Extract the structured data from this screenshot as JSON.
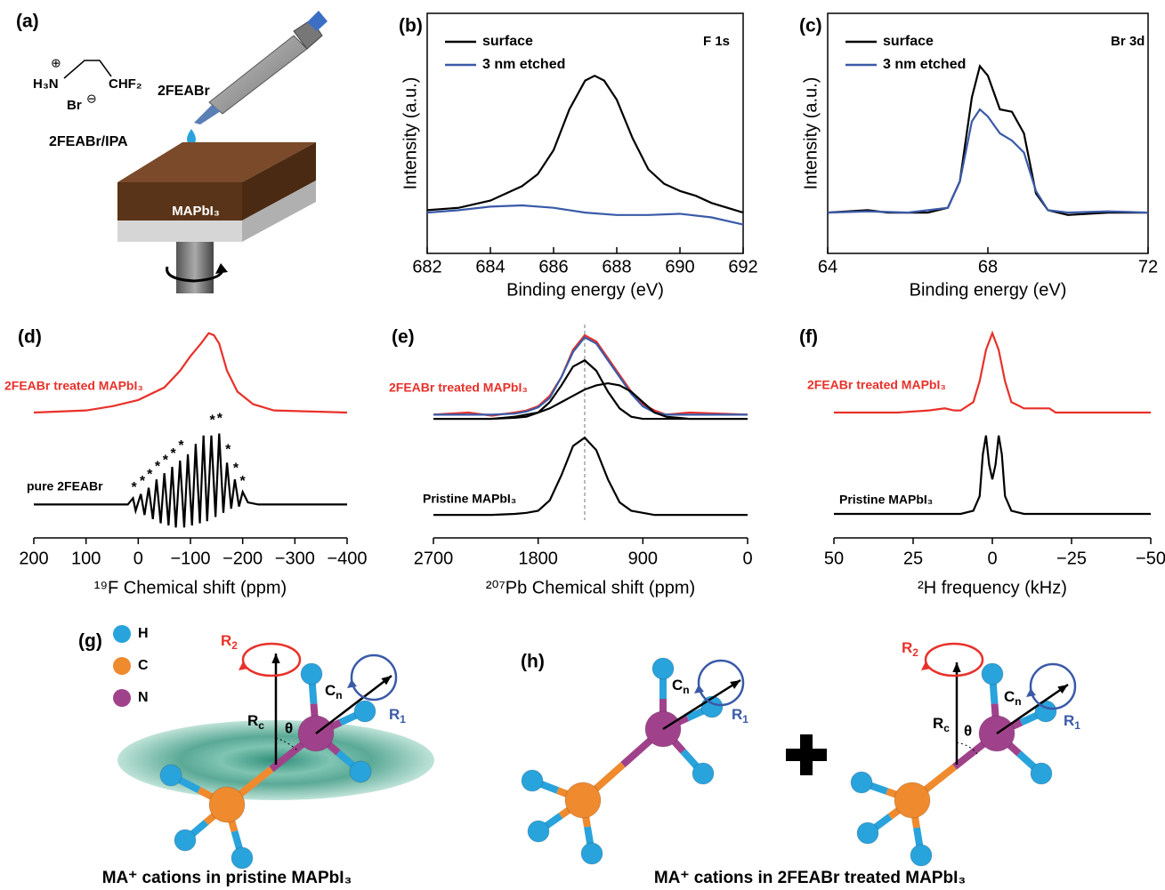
{
  "panel_a": {
    "label": "(a)",
    "cation": "H₃N",
    "cation_charge": "⊕",
    "group": "CHF₂",
    "anion": "Br",
    "anion_charge": "⊖",
    "reagent": "2FEABr",
    "solution": "2FEABr/IPA",
    "film": "MAPbI₃"
  },
  "chart_data": [
    {
      "type": "line",
      "panel_label": "(b)",
      "annotation": "F 1s",
      "xlabel": "Binding energy (eV)",
      "ylabel": "Intensity (a.u.)",
      "xlim": [
        682,
        692
      ],
      "xticks": [
        682,
        684,
        686,
        688,
        690,
        692
      ],
      "ylim": [
        0,
        1
      ],
      "legend": "upper left",
      "series": [
        {
          "name": "surface",
          "color": "#000000",
          "x": [
            682,
            683,
            684,
            685,
            685.5,
            686,
            686.5,
            687,
            687.3,
            687.6,
            688,
            688.5,
            689,
            689.5,
            690,
            690.5,
            691,
            692
          ],
          "values": [
            0.18,
            0.19,
            0.22,
            0.28,
            0.33,
            0.43,
            0.6,
            0.72,
            0.74,
            0.72,
            0.64,
            0.48,
            0.35,
            0.29,
            0.26,
            0.24,
            0.21,
            0.17
          ]
        },
        {
          "name": "3 nm etched",
          "color": "#3a5aa8",
          "x": [
            682,
            683,
            684,
            685,
            686,
            687,
            688,
            689,
            690,
            691,
            692
          ],
          "values": [
            0.17,
            0.18,
            0.195,
            0.2,
            0.19,
            0.17,
            0.16,
            0.16,
            0.165,
            0.15,
            0.12
          ]
        }
      ]
    },
    {
      "type": "line",
      "panel_label": "(c)",
      "annotation": "Br 3d",
      "xlabel": "Binding energy (eV)",
      "ylabel": "Intensity (a.u.)",
      "xlim": [
        64,
        72
      ],
      "xticks": [
        64,
        68,
        72
      ],
      "ylim": [
        0,
        1
      ],
      "legend": "upper left",
      "series": [
        {
          "name": "surface",
          "color": "#000000",
          "x": [
            64,
            65,
            65.5,
            66,
            66.5,
            67,
            67.3,
            67.6,
            67.8,
            68,
            68.3,
            68.6,
            68.9,
            69.2,
            69.5,
            70,
            71,
            72
          ],
          "values": [
            0.17,
            0.18,
            0.17,
            0.17,
            0.17,
            0.19,
            0.3,
            0.65,
            0.78,
            0.74,
            0.6,
            0.59,
            0.5,
            0.25,
            0.18,
            0.16,
            0.17,
            0.17
          ]
        },
        {
          "name": "3 nm etched",
          "color": "#3a5aa8",
          "x": [
            64,
            65,
            66,
            67,
            67.3,
            67.6,
            67.8,
            68,
            68.3,
            68.6,
            68.9,
            69.2,
            69.5,
            70,
            71,
            72
          ],
          "values": [
            0.17,
            0.175,
            0.17,
            0.19,
            0.3,
            0.55,
            0.6,
            0.57,
            0.5,
            0.47,
            0.42,
            0.26,
            0.18,
            0.17,
            0.175,
            0.17
          ]
        }
      ]
    },
    {
      "type": "line",
      "panel_label": "(d)",
      "xlabel": "¹⁹F Chemical shift (ppm)",
      "xlim": [
        200,
        -400
      ],
      "xticks": [
        200,
        100,
        0,
        {
          "value": -100,
          "label": "−100"
        },
        {
          "value": -200,
          "label": "−200"
        },
        {
          "value": -300,
          "label": "−300"
        },
        {
          "value": -400,
          "label": "−400"
        }
      ],
      "ylim": [
        0,
        1
      ],
      "series": [
        {
          "name": "2FEABr treated MAPbI₃",
          "color": "#e8312a",
          "x": [
            200,
            100,
            50,
            0,
            -50,
            -80,
            -100,
            -120,
            -135,
            -145,
            -155,
            -170,
            -190,
            -220,
            -260,
            -400
          ],
          "values": [
            0.6,
            0.61,
            0.63,
            0.66,
            0.72,
            0.8,
            0.87,
            0.93,
            0.98,
            0.97,
            0.93,
            0.8,
            0.7,
            0.64,
            0.61,
            0.6
          ]
        },
        {
          "name": "pure 2FEABr",
          "color": "#000000",
          "x": [
            200,
            100,
            20,
            10,
            5,
            -5,
            -12,
            -20,
            -28,
            -35,
            -43,
            -50,
            -58,
            -65,
            -72,
            -80,
            -88,
            -95,
            -103,
            -110,
            -118,
            -125,
            -132,
            -140,
            -148,
            -155,
            -163,
            -170,
            -178,
            -185,
            -193,
            -200,
            -210,
            -230,
            -300,
            -400
          ],
          "values": [
            0.16,
            0.16,
            0.16,
            0.19,
            0.13,
            0.21,
            0.11,
            0.24,
            0.09,
            0.28,
            0.07,
            0.31,
            0.06,
            0.34,
            0.05,
            0.37,
            0.05,
            0.4,
            0.06,
            0.45,
            0.07,
            0.49,
            0.08,
            0.49,
            0.1,
            0.5,
            0.12,
            0.36,
            0.14,
            0.28,
            0.15,
            0.22,
            0.17,
            0.16,
            0.16,
            0.16
          ]
        }
      ],
      "annotations": [
        {
          "text": "*",
          "x": 8,
          "y": 0.24
        },
        {
          "text": "*",
          "x": -8,
          "y": 0.27
        },
        {
          "text": "*",
          "x": -22,
          "y": 0.3
        },
        {
          "text": "*",
          "x": -37,
          "y": 0.34
        },
        {
          "text": "*",
          "x": -52,
          "y": 0.37
        },
        {
          "text": "*",
          "x": -67,
          "y": 0.4
        },
        {
          "text": "*",
          "x": -82,
          "y": 0.44
        },
        {
          "text": "*",
          "x": -142,
          "y": 0.56
        },
        {
          "text": "*",
          "x": -156,
          "y": 0.57
        },
        {
          "text": "*",
          "x": -172,
          "y": 0.42
        },
        {
          "text": "*",
          "x": -187,
          "y": 0.33
        },
        {
          "text": "*",
          "x": -200,
          "y": 0.27
        }
      ]
    },
    {
      "type": "line",
      "panel_label": "(e)",
      "xlabel": "²⁰⁷Pb Chemical shift (ppm)",
      "xlim": [
        2700,
        0
      ],
      "xticks": [
        2700,
        1800,
        900,
        0
      ],
      "ylim": [
        0,
        1
      ],
      "reference_x": 1400,
      "series": [
        {
          "name": "2FEABr treated MAPbI₃",
          "color": "#e8312a",
          "x": [
            2700,
            2400,
            2200,
            2000,
            1900,
            1800,
            1700,
            1600,
            1500,
            1400,
            1300,
            1200,
            1100,
            1000,
            900,
            800,
            700,
            500,
            0
          ],
          "values": [
            0.59,
            0.6,
            0.585,
            0.6,
            0.61,
            0.63,
            0.68,
            0.77,
            0.9,
            0.97,
            0.94,
            0.86,
            0.78,
            0.7,
            0.64,
            0.61,
            0.59,
            0.6,
            0.59
          ]
        },
        {
          "color": "#3a5aa8",
          "x": [
            2700,
            2400,
            2200,
            2000,
            1900,
            1800,
            1700,
            1600,
            1500,
            1400,
            1300,
            1200,
            1100,
            1000,
            900,
            800,
            700,
            500,
            0
          ],
          "values": [
            0.59,
            0.59,
            0.59,
            0.595,
            0.605,
            0.625,
            0.67,
            0.77,
            0.89,
            0.96,
            0.93,
            0.85,
            0.77,
            0.69,
            0.63,
            0.6,
            0.59,
            0.59,
            0.59
          ]
        },
        {
          "color": "#000000",
          "x": [
            2700,
            2400,
            2200,
            2000,
            1900,
            1800,
            1700,
            1600,
            1500,
            1400,
            1300,
            1200,
            1100,
            1000,
            900,
            800,
            700,
            500,
            0
          ],
          "values": [
            0.57,
            0.57,
            0.57,
            0.575,
            0.58,
            0.6,
            0.65,
            0.73,
            0.82,
            0.85,
            0.8,
            0.7,
            0.62,
            0.58,
            0.57,
            0.57,
            0.57,
            0.57,
            0.57
          ]
        },
        {
          "color": "#000000",
          "x": [
            2700,
            2400,
            2200,
            2000,
            1900,
            1800,
            1700,
            1600,
            1500,
            1400,
            1300,
            1200,
            1100,
            1000,
            900,
            800,
            700,
            500,
            0
          ],
          "values": [
            0.57,
            0.57,
            0.57,
            0.58,
            0.59,
            0.6,
            0.62,
            0.65,
            0.68,
            0.71,
            0.73,
            0.74,
            0.73,
            0.7,
            0.65,
            0.6,
            0.58,
            0.57,
            0.57
          ]
        },
        {
          "name": "Pristine MAPbI₃",
          "color": "#000000",
          "x": [
            2700,
            2400,
            2200,
            2000,
            1900,
            1800,
            1700,
            1600,
            1500,
            1400,
            1300,
            1200,
            1100,
            1000,
            900,
            800,
            700,
            500,
            0
          ],
          "values": [
            0.11,
            0.11,
            0.11,
            0.115,
            0.12,
            0.13,
            0.18,
            0.3,
            0.44,
            0.48,
            0.42,
            0.28,
            0.17,
            0.13,
            0.12,
            0.11,
            0.11,
            0.11,
            0.11
          ]
        }
      ]
    },
    {
      "type": "line",
      "panel_label": "(f)",
      "xlabel": "²H frequency (kHz)",
      "xlim": [
        50,
        -50
      ],
      "xticks": [
        50,
        25,
        0,
        {
          "value": -25,
          "label": "−25"
        },
        {
          "value": -50,
          "label": "−50"
        }
      ],
      "ylim": [
        0,
        1
      ],
      "series": [
        {
          "name": "2FEABr treated MAPbI₃",
          "color": "#e8312a",
          "x": [
            50,
            40,
            30,
            20,
            15,
            12,
            10,
            6,
            4,
            2,
            0,
            -2,
            -4,
            -6,
            -10,
            -18,
            -20,
            -30,
            -50
          ],
          "values": [
            0.6,
            0.6,
            0.6,
            0.61,
            0.62,
            0.61,
            0.61,
            0.65,
            0.75,
            0.9,
            0.98,
            0.9,
            0.75,
            0.65,
            0.62,
            0.62,
            0.6,
            0.6,
            0.6
          ]
        },
        {
          "name": "Pristine MAPbI₃",
          "color": "#000000",
          "x": [
            50,
            10,
            6,
            4,
            3,
            2,
            1,
            0,
            -1,
            -2,
            -3,
            -4,
            -6,
            -10,
            -50
          ],
          "values": [
            0.115,
            0.115,
            0.13,
            0.2,
            0.4,
            0.49,
            0.35,
            0.28,
            0.35,
            0.49,
            0.4,
            0.2,
            0.13,
            0.115,
            0.115
          ]
        }
      ]
    }
  ],
  "panel_g": {
    "label": "(g)",
    "legend": [
      "H",
      "C",
      "N"
    ],
    "r2": {
      "text": "R",
      "sub": "2"
    },
    "rc": {
      "text": "R",
      "sub": "c"
    },
    "theta": "θ",
    "cn": {
      "text": "C",
      "sub": "n"
    },
    "r1": {
      "text": "R",
      "sub": "1"
    },
    "caption": "MA⁺ cations in pristine MAPbI₃"
  },
  "panel_h": {
    "label": "(h)",
    "cn_left": {
      "text": "C",
      "sub": "n"
    },
    "r1_left": {
      "text": "R",
      "sub": "1"
    },
    "r2": {
      "text": "R",
      "sub": "2"
    },
    "rc": {
      "text": "R",
      "sub": "c"
    },
    "theta": "θ",
    "cn_right": {
      "text": "C",
      "sub": "n"
    },
    "r1_right": {
      "text": "R",
      "sub": "1"
    },
    "caption": "MA⁺ cations in 2FEABr treated MAPbI₃"
  }
}
